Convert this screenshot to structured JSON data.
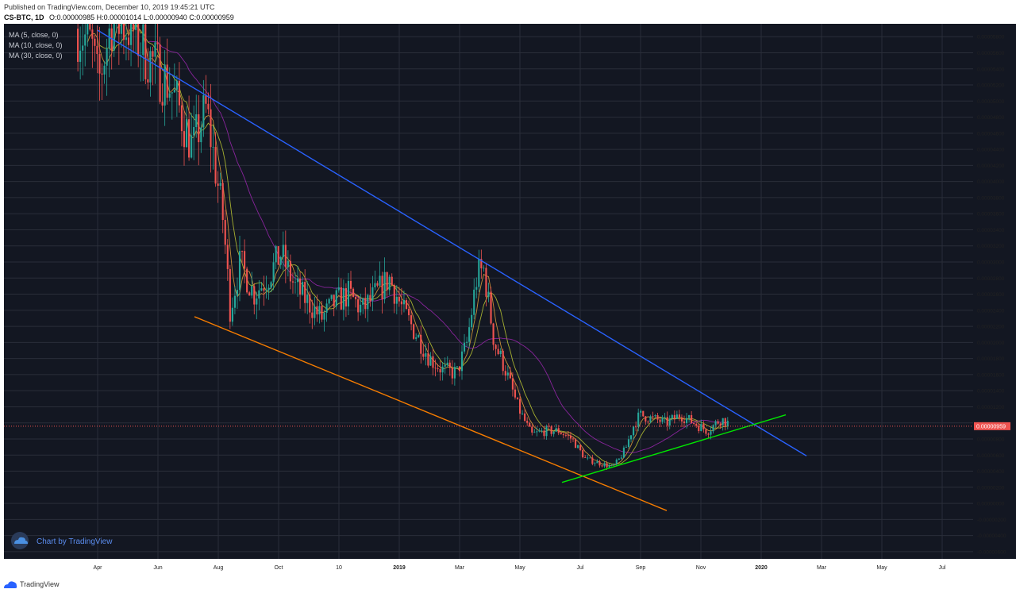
{
  "header": {
    "published": "Published on TradingView.com, December 10, 2019 19:45:21 UTC",
    "symbol": "CS-BTC, 1D",
    "o": "O:0.00000985",
    "h": "H:0.00001014",
    "l": "L:0.00000940",
    "c": "C:0.00000959"
  },
  "legend": [
    "MA (5, close, 0)",
    "MA (10, close, 0)",
    "MA (30, close, 0)"
  ],
  "watermark": "Chart by TradingView",
  "footer_logo": "TradingView",
  "colors": {
    "background": "#131722",
    "grid": "#2a2e39",
    "up": "#26a69a",
    "down": "#ef5350",
    "upper_trendline": "#2962ff",
    "lower_trendline": "#f57c00",
    "support_trendline": "#00e600",
    "ma": "#9c27b0",
    "price_line": "#ef5350"
  },
  "chart_data": {
    "type": "candlestick",
    "x_ticks": [
      "Apr",
      "Jun",
      "Aug",
      "Oct",
      "10",
      "2019",
      "Mar",
      "May",
      "Jul",
      "Sep",
      "Nov",
      "2020",
      "Mar",
      "May",
      "Jul"
    ],
    "y_ticks": [
      "0.00005800",
      "0.00005600",
      "0.00005400",
      "0.00005200",
      "0.00005000",
      "0.00004800",
      "0.00004600",
      "0.00004400",
      "0.00004200",
      "0.00004000",
      "0.00003800",
      "0.00003600",
      "0.00003400",
      "0.00003200",
      "0.00003000",
      "0.00002800",
      "0.00002600",
      "0.00002400",
      "0.00002200",
      "0.00002000",
      "0.00001800",
      "0.00001600",
      "0.00001400",
      "0.00001200",
      "0.00001000",
      "0.00000800",
      "0.00000600",
      "0.00000400",
      "0.00000200",
      "0.00000000",
      "-0.00000200",
      "-0.00000400",
      "-0.00000600"
    ],
    "ylim": [
      -6.9e-06,
      5.96e-05
    ],
    "current_price": 9.59e-06,
    "current_price_label": "0.00000959",
    "price_path": [
      [
        0.0,
        5.9e-05
      ],
      [
        0.02,
        5.7e-05
      ],
      [
        0.03,
        5.2e-05
      ],
      [
        0.05,
        6e-05
      ],
      [
        0.08,
        5.9e-05
      ],
      [
        0.1,
        5.6e-05
      ],
      [
        0.135,
        5.2e-05
      ],
      [
        0.15,
        4.9e-05
      ],
      [
        0.17,
        4.4e-05
      ],
      [
        0.18,
        4.7e-05
      ],
      [
        0.19,
        4.9e-05
      ],
      [
        0.215,
        3.5e-05
      ],
      [
        0.225,
        2.4e-05
      ],
      [
        0.24,
        3e-05
      ],
      [
        0.26,
        2.6e-05
      ],
      [
        0.28,
        2.8e-05
      ],
      [
        0.3,
        3.1e-05
      ],
      [
        0.32,
        2.7e-05
      ],
      [
        0.34,
        2.5e-05
      ],
      [
        0.36,
        2.3e-05
      ],
      [
        0.38,
        2.5e-05
      ],
      [
        0.4,
        2.6e-05
      ],
      [
        0.42,
        2.4e-05
      ],
      [
        0.44,
        2.6e-05
      ],
      [
        0.46,
        2.8e-05
      ],
      [
        0.48,
        2.4e-05
      ],
      [
        0.5,
        2.1e-05
      ],
      [
        0.52,
        1.8e-05
      ],
      [
        0.54,
        1.65e-05
      ],
      [
        0.56,
        1.62e-05
      ],
      [
        0.575,
        2e-05
      ],
      [
        0.59,
        2.85e-05
      ],
      [
        0.6,
        2.9e-05
      ],
      [
        0.615,
        2e-05
      ],
      [
        0.63,
        1.7e-05
      ],
      [
        0.65,
        1.2e-05
      ],
      [
        0.67,
        8.5e-06
      ],
      [
        0.69,
        9e-06
      ],
      [
        0.71,
        9e-06
      ],
      [
        0.73,
        8e-06
      ],
      [
        0.75,
        5.5e-06
      ],
      [
        0.77,
        5e-06
      ],
      [
        0.79,
        4.5e-06
      ],
      [
        0.8,
        5.5e-06
      ],
      [
        0.81,
        7e-06
      ],
      [
        0.82,
        9.5e-06
      ],
      [
        0.83,
        1.1e-05
      ],
      [
        0.85,
        1.05e-05
      ],
      [
        0.87,
        1e-05
      ],
      [
        0.89,
        1.1e-05
      ],
      [
        0.91,
        1e-05
      ],
      [
        0.93,
        9e-06
      ],
      [
        0.95,
        1.05e-05
      ],
      [
        0.96,
        1e-05
      ]
    ],
    "trendlines": [
      {
        "name": "upper",
        "from": [
          0.0,
          5.88e-05
        ],
        "to": [
          1.0,
          5.9e-06
        ]
      },
      {
        "name": "lower",
        "from": [
          0.0,
          2.32e-05
        ],
        "to": [
          1.0,
          -9e-07
        ]
      },
      {
        "name": "support",
        "from": [
          0.0,
          2.6e-06
        ],
        "to": [
          1.0,
          1.1e-05
        ]
      }
    ]
  }
}
